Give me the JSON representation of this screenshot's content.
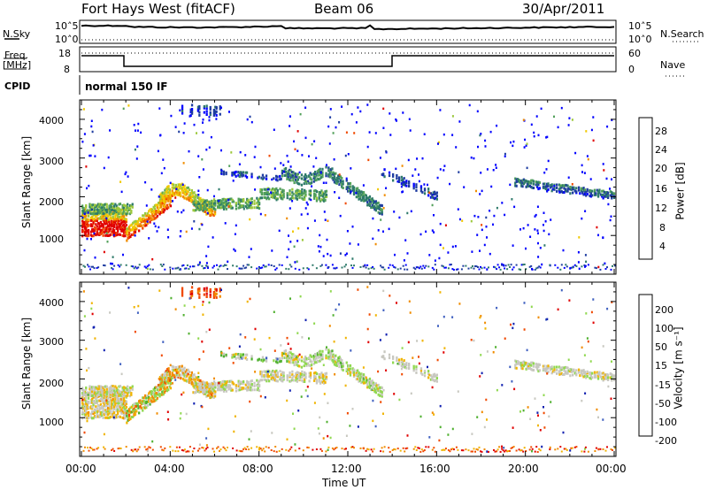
{
  "header": {
    "title": "Fort Hays West (fitACF)",
    "beam": "Beam 06",
    "date": "30/Apr/2011"
  },
  "noise_panel": {
    "left_label": "N.Sky",
    "right_label": "N.Search",
    "tick_top": "10^5",
    "tick_bottom": "10^0"
  },
  "freq_panel": {
    "left_label_1": "Freq.",
    "left_label_2": "[MHz]",
    "left_ticks": [
      "18",
      "8"
    ],
    "right_label": "Nave",
    "right_ticks": [
      "60",
      "0"
    ]
  },
  "cpid": {
    "label": "CPID",
    "value": "normal 150 IF"
  },
  "chart_data": [
    {
      "type": "heatmap",
      "name": "power",
      "ylabel": "Slant Range [km]",
      "yticks": [
        1000,
        2000,
        3000,
        4000
      ],
      "ylim": [
        0,
        4500
      ],
      "xlim": [
        0,
        24
      ],
      "colorbar": {
        "label": "Power [dB]",
        "ticks": [
          "28",
          "24",
          "20",
          "16",
          "12",
          "8",
          "4"
        ],
        "colors": [
          "#0000ff",
          "#1e3ca0",
          "#2e7a6a",
          "#52a05a",
          "#9cc83c",
          "#f0c800",
          "#f08c00",
          "#f04a00",
          "#e00000"
        ]
      }
    },
    {
      "type": "heatmap",
      "name": "velocity",
      "ylabel": "Slant Range [km]",
      "yticks": [
        1000,
        2000,
        3000,
        4000
      ],
      "ylim": [
        0,
        4500
      ],
      "xlim": [
        0,
        24
      ],
      "colorbar": {
        "label": "Velocity [m s⁻¹]",
        "ticks": [
          "200",
          "100",
          "50",
          "15",
          "-15",
          "-50",
          "-100",
          "-200"
        ],
        "colors": [
          "#e00000",
          "#f04a00",
          "#f08c00",
          "#f0b400",
          "#c8c8c0",
          "#90d850",
          "#50b030",
          "#4060c0",
          "#1020b0"
        ]
      }
    }
  ],
  "xaxis": {
    "ticks": [
      "00:00",
      "04:00",
      "08:00",
      "12:00",
      "16:00",
      "20:00",
      "00:00"
    ],
    "label": "Time UT"
  }
}
